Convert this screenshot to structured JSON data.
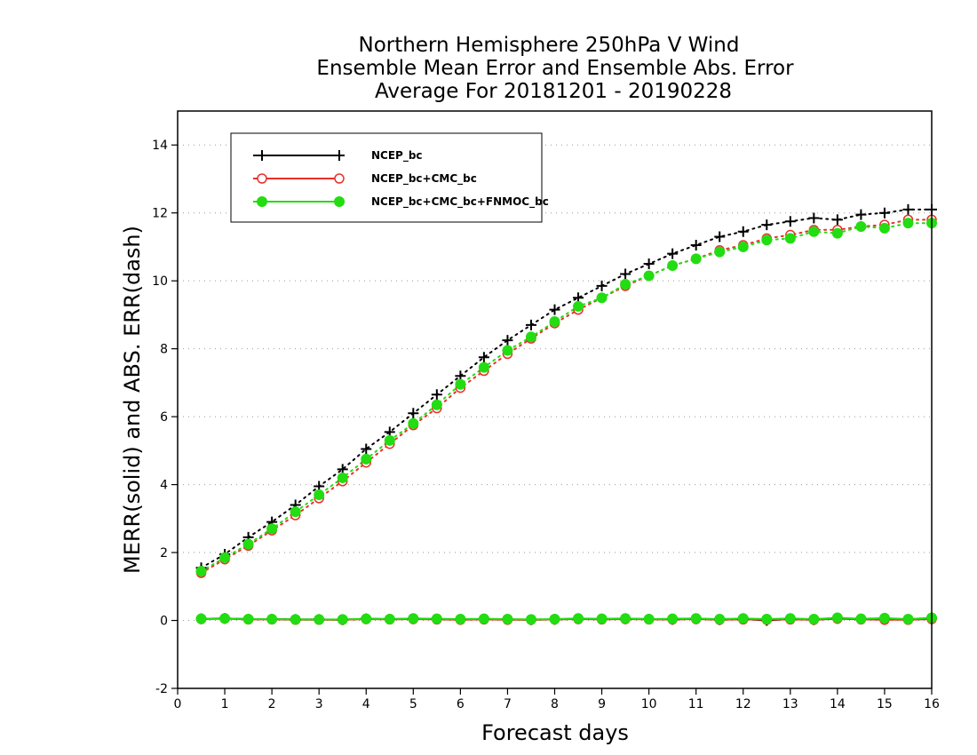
{
  "chart_data": {
    "type": "line",
    "title_lines": [
      "Northern Hemisphere 250hPa V Wind",
      "Ensemble Mean Error and Ensemble Abs. Error",
      "Average For 20181201 - 20190228"
    ],
    "xlabel": "Forecast days",
    "ylabel": "MERR(solid) and ABS. ERR(dash)",
    "xlim": [
      0,
      16
    ],
    "ylim": [
      -2,
      15
    ],
    "x_ticks": [
      "0",
      "1",
      "2",
      "3",
      "4",
      "5",
      "6",
      "7",
      "8",
      "9",
      "10",
      "11",
      "12",
      "13",
      "14",
      "15",
      "16"
    ],
    "y_ticks": [
      "-2",
      "0",
      "2",
      "4",
      "6",
      "8",
      "10",
      "12",
      "14"
    ],
    "grid": "horizontal-dotted",
    "legend_position": "top-left",
    "x": [
      0.5,
      1,
      1.5,
      2,
      2.5,
      3,
      3.5,
      4,
      4.5,
      5,
      5.5,
      6,
      6.5,
      7,
      7.5,
      8,
      8.5,
      9,
      9.5,
      10,
      10.5,
      11,
      11.5,
      12,
      12.5,
      13,
      13.5,
      14,
      14.5,
      15,
      15.5,
      16
    ],
    "series": [
      {
        "name": "NCEP_bc",
        "color": "#000000",
        "marker": "plus",
        "merr": [
          0.05,
          0.06,
          0.04,
          0.04,
          0.03,
          0.03,
          0.02,
          0.05,
          0.04,
          0.05,
          0.04,
          0.03,
          0.04,
          0.03,
          0.02,
          0.03,
          0.05,
          0.04,
          0.05,
          0.04,
          0.03,
          0.05,
          0.02,
          0.04,
          0.0,
          0.04,
          0.02,
          0.06,
          0.04,
          0.05,
          0.03,
          0.06
        ],
        "abs_err": [
          1.55,
          1.95,
          2.45,
          2.9,
          3.4,
          3.95,
          4.45,
          5.05,
          5.55,
          6.1,
          6.65,
          7.2,
          7.75,
          8.25,
          8.7,
          9.15,
          9.5,
          9.85,
          10.2,
          10.5,
          10.8,
          11.05,
          11.3,
          11.45,
          11.65,
          11.75,
          11.85,
          11.8,
          11.95,
          12.0,
          12.1,
          12.1
        ]
      },
      {
        "name": "NCEP_bc+CMC_bc",
        "color": "#e8302a",
        "marker": "circle-open",
        "merr": [
          0.04,
          0.05,
          0.03,
          0.03,
          0.02,
          0.02,
          0.02,
          0.04,
          0.03,
          0.04,
          0.03,
          0.02,
          0.03,
          0.02,
          0.02,
          0.03,
          0.04,
          0.03,
          0.04,
          0.03,
          0.03,
          0.04,
          0.02,
          0.03,
          0.02,
          0.03,
          0.02,
          0.05,
          0.03,
          0.02,
          0.02,
          0.04
        ],
        "abs_err": [
          1.4,
          1.8,
          2.2,
          2.65,
          3.1,
          3.6,
          4.1,
          4.65,
          5.2,
          5.75,
          6.25,
          6.85,
          7.35,
          7.85,
          8.3,
          8.75,
          9.15,
          9.5,
          9.85,
          10.15,
          10.45,
          10.65,
          10.9,
          11.05,
          11.25,
          11.35,
          11.5,
          11.5,
          11.6,
          11.65,
          11.8,
          11.8
        ]
      },
      {
        "name": "NCEP_bc+CMC_bc+FNMOC_bc",
        "color": "#22dd11",
        "marker": "circle-filled",
        "merr": [
          0.05,
          0.06,
          0.04,
          0.04,
          0.03,
          0.03,
          0.03,
          0.05,
          0.04,
          0.06,
          0.05,
          0.04,
          0.05,
          0.04,
          0.03,
          0.04,
          0.06,
          0.05,
          0.06,
          0.04,
          0.05,
          0.06,
          0.04,
          0.06,
          0.04,
          0.06,
          0.04,
          0.08,
          0.05,
          0.07,
          0.04,
          0.08
        ],
        "abs_err": [
          1.45,
          1.85,
          2.25,
          2.7,
          3.2,
          3.7,
          4.2,
          4.75,
          5.3,
          5.8,
          6.35,
          6.95,
          7.45,
          7.95,
          8.35,
          8.8,
          9.25,
          9.5,
          9.9,
          10.15,
          10.45,
          10.65,
          10.85,
          11.0,
          11.2,
          11.25,
          11.45,
          11.4,
          11.6,
          11.55,
          11.7,
          11.7
        ]
      }
    ]
  }
}
